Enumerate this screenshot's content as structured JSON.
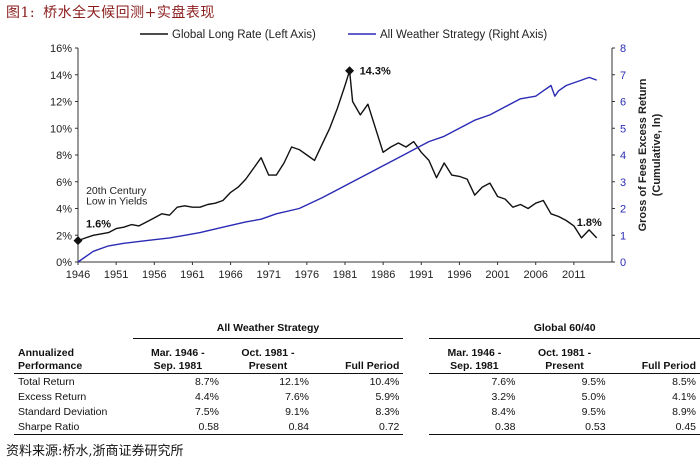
{
  "caption": {
    "number": "图1:",
    "title": "桥水全天候回测+实盘表现"
  },
  "source_note": "资料来源:桥水,浙商证券研究所",
  "chart_data": {
    "type": "line",
    "title": "",
    "x_ticks": [
      "1946",
      "1951",
      "1956",
      "1961",
      "1966",
      "1971",
      "1976",
      "1981",
      "1986",
      "1991",
      "1996",
      "2001",
      "2006",
      "2011"
    ],
    "xlim": [
      1946,
      2016
    ],
    "y_left": {
      "ticks": [
        "0%",
        "2%",
        "4%",
        "6%",
        "8%",
        "10%",
        "12%",
        "14%",
        "16%"
      ],
      "ylim": [
        0,
        16
      ]
    },
    "y_right": {
      "ticks": [
        "0",
        "1",
        "2",
        "3",
        "4",
        "5",
        "6",
        "7",
        "8"
      ],
      "ylim": [
        0,
        8
      ],
      "label_line1": "Gross of Fees Excess Return",
      "label_line2": "(Cumulative, ln)"
    },
    "legend": [
      "Global Long Rate (Left Axis)",
      "All Weather Strategy (Right Axis)"
    ],
    "colors": {
      "rate": "#111111",
      "strategy": "#2b2bb5"
    },
    "series": [
      {
        "name": "Global Long Rate (Left Axis)",
        "axis": "left",
        "x": [
          1946,
          1947,
          1948,
          1949,
          1950,
          1951,
          1952,
          1953,
          1954,
          1955,
          1956,
          1957,
          1958,
          1959,
          1960,
          1961,
          1962,
          1963,
          1964,
          1965,
          1966,
          1967,
          1968,
          1969,
          1970,
          1971,
          1972,
          1973,
          1974,
          1975,
          1976,
          1977,
          1978,
          1979,
          1980,
          1981,
          1981.6,
          1982,
          1983,
          1984,
          1985,
          1986,
          1987,
          1988,
          1989,
          1990,
          1991,
          1992,
          1993,
          1994,
          1995,
          1996,
          1997,
          1998,
          1999,
          2000,
          2001,
          2002,
          2003,
          2004,
          2005,
          2006,
          2007,
          2008,
          2009,
          2010,
          2011,
          2012,
          2013,
          2014
        ],
        "values": [
          1.6,
          1.8,
          2.0,
          2.1,
          2.2,
          2.5,
          2.6,
          2.8,
          2.7,
          3.0,
          3.3,
          3.6,
          3.5,
          4.1,
          4.2,
          4.1,
          4.1,
          4.3,
          4.4,
          4.6,
          5.2,
          5.6,
          6.2,
          7.0,
          7.8,
          6.5,
          6.5,
          7.4,
          8.6,
          8.4,
          8.0,
          7.6,
          8.8,
          10.0,
          11.5,
          13.2,
          14.3,
          12.0,
          11.0,
          11.8,
          10.0,
          8.2,
          8.6,
          8.9,
          8.6,
          9.0,
          8.2,
          7.6,
          6.3,
          7.4,
          6.5,
          6.4,
          6.2,
          5.0,
          5.6,
          5.9,
          4.9,
          4.7,
          4.1,
          4.3,
          4.0,
          4.4,
          4.6,
          3.6,
          3.4,
          3.1,
          2.7,
          1.8,
          2.4,
          1.8
        ]
      },
      {
        "name": "All Weather Strategy (Right Axis)",
        "axis": "right",
        "x": [
          1946,
          1948,
          1950,
          1952,
          1955,
          1958,
          1960,
          1962,
          1965,
          1968,
          1970,
          1972,
          1975,
          1978,
          1980,
          1982,
          1984,
          1986,
          1988,
          1990,
          1992,
          1994,
          1996,
          1998,
          2000,
          2002,
          2004,
          2006,
          2007,
          2008,
          2008.5,
          2009,
          2010,
          2012,
          2013,
          2014
        ],
        "values": [
          0.0,
          0.4,
          0.6,
          0.7,
          0.8,
          0.9,
          1.0,
          1.1,
          1.3,
          1.5,
          1.6,
          1.8,
          2.0,
          2.4,
          2.7,
          3.0,
          3.3,
          3.6,
          3.9,
          4.2,
          4.5,
          4.7,
          5.0,
          5.3,
          5.5,
          5.8,
          6.1,
          6.2,
          6.4,
          6.6,
          6.2,
          6.4,
          6.6,
          6.8,
          6.9,
          6.8
        ]
      }
    ],
    "annotations": [
      {
        "text": "14.3%",
        "x": 1981.6,
        "y": 14.3,
        "marker": "diamond"
      },
      {
        "text": "1.6%",
        "x": 1946,
        "y": 1.6,
        "marker": "diamond"
      },
      {
        "text": "1.8%",
        "x": 2014,
        "y": 1.8,
        "marker": "none"
      },
      {
        "text": "20th Century",
        "x": 1946.8,
        "y": 5.1,
        "marker": "none"
      },
      {
        "text": "Low in Yields",
        "x": 1946.8,
        "y": 4.3,
        "marker": "none"
      }
    ]
  },
  "table": {
    "groups": [
      "All Weather Strategy",
      "Global 60/40"
    ],
    "header_label": [
      "Annualized",
      "Performance"
    ],
    "periods": [
      {
        "line1": "Mar. 1946 -",
        "line2": "Sep. 1981"
      },
      {
        "line1": "Oct. 1981 -",
        "line2": "Present"
      },
      {
        "line1": "",
        "line2": "Full Period"
      }
    ],
    "rows": [
      {
        "label": "Total Return",
        "aw": [
          "8.7%",
          "12.1%",
          "10.4%"
        ],
        "g": [
          "7.6%",
          "9.5%",
          "8.5%"
        ]
      },
      {
        "label": "Excess Return",
        "aw": [
          "4.4%",
          "7.6%",
          "5.9%"
        ],
        "g": [
          "3.2%",
          "5.0%",
          "4.1%"
        ]
      },
      {
        "label": "Standard Deviation",
        "aw": [
          "7.5%",
          "9.1%",
          "8.3%"
        ],
        "g": [
          "8.4%",
          "9.5%",
          "8.9%"
        ]
      },
      {
        "label": "Sharpe Ratio",
        "aw": [
          "0.58",
          "0.84",
          "0.72"
        ],
        "g": [
          "0.38",
          "0.53",
          "0.45"
        ]
      }
    ]
  }
}
